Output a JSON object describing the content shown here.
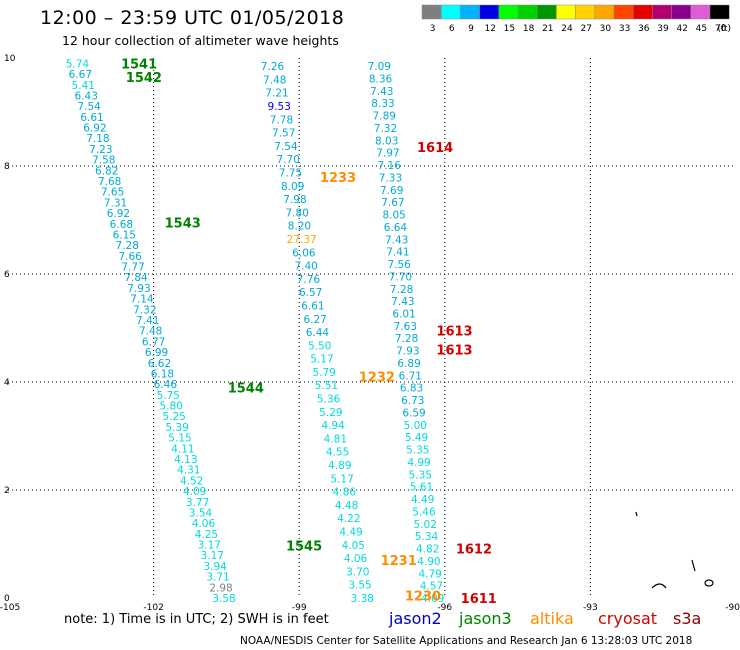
{
  "title": "12:00 – 23:59 UTC 01/05/2018",
  "subtitle": "12 hour collection of altimeter wave heights",
  "note": "note: 1) Time is in UTC; 2) SWH is in feet",
  "credit": "NOAA/NESDIS Center for Satellite Applications and Research    Jan 6 13:28:03 UTC 2018",
  "legend": {
    "unit": "(ft)",
    "bins": [
      {
        "label": "3",
        "color": "#7f7f7f"
      },
      {
        "label": "6",
        "color": "#00ffff"
      },
      {
        "label": "9",
        "color": "#00b2ff"
      },
      {
        "label": "12",
        "color": "#0000e5"
      },
      {
        "label": "15",
        "color": "#00ff00"
      },
      {
        "label": "18",
        "color": "#00d200"
      },
      {
        "label": "21",
        "color": "#009600"
      },
      {
        "label": "24",
        "color": "#ffff00"
      },
      {
        "label": "27",
        "color": "#ffd200"
      },
      {
        "label": "30",
        "color": "#ffa500"
      },
      {
        "label": "33",
        "color": "#ff4500"
      },
      {
        "label": "36",
        "color": "#e60000"
      },
      {
        "label": "39",
        "color": "#b4006e"
      },
      {
        "label": "42",
        "color": "#8b008b"
      },
      {
        "label": "45",
        "color": "#e05cd6"
      },
      {
        "label": "70",
        "color": "#000000"
      }
    ]
  },
  "satellites": [
    {
      "name": "jason2",
      "color": "#0000c8"
    },
    {
      "name": "jason3",
      "color": "#008200"
    },
    {
      "name": "altika",
      "color": "#ff8c00"
    },
    {
      "name": "cryosat",
      "color": "#d20000"
    },
    {
      "name": "s3a",
      "color": "#8b0000"
    }
  ],
  "chart_data": {
    "type": "scatter",
    "title": "12:00 – 23:59 UTC 01/05/2018",
    "subtitle": "12 hour collection of altimeter wave heights",
    "xlim": [
      -105,
      -90
    ],
    "ylim": [
      0,
      10
    ],
    "x_ticks": [
      "-105",
      "-102",
      "-99",
      "-96",
      "-93",
      "-90"
    ],
    "y_ticks": [
      "0",
      "2",
      "4",
      "6",
      "8",
      "10"
    ],
    "grid": true,
    "tracks": [
      {
        "satellite": "jason3",
        "color": "#00ced1",
        "start": [
          -103.57,
          9.9
        ],
        "end": [
          -100.55,
          0.0
        ],
        "values": [
          "5.74",
          "6.67",
          "5.41",
          "6.43",
          "7.54",
          "6.61",
          "6.92",
          "7.18",
          "7.23",
          "7.58",
          "6.82",
          "7.68",
          "7.65",
          "7.31",
          "6.92",
          "6.68",
          "6.15",
          "7.28",
          "7.66",
          "7.77",
          "7.84",
          "7.93",
          "7.14",
          "7.32",
          "7.41",
          "7.48",
          "6.77",
          "6.99",
          "6.62",
          "6.18",
          "6.46",
          "5.75",
          "5.80",
          "5.25",
          "5.39",
          "5.15",
          "4.11",
          "4.13",
          "4.31",
          "4.52",
          "4.09",
          "3.77",
          "3.54",
          "4.06",
          "4.25",
          "3.17",
          "3.17",
          "3.94",
          "3.71",
          "2.98",
          "3.58"
        ]
      },
      {
        "satellite": "altika",
        "color": "#00ced1",
        "start": [
          -99.55,
          9.85
        ],
        "end": [
          -97.7,
          0.0
        ],
        "values": [
          "7.26",
          "7.48",
          "7.21",
          "9.53",
          "7.78",
          "7.57",
          "7.54",
          "7.70",
          "7.75",
          "8.09",
          "7.98",
          "7.80",
          "8.20",
          "27.37",
          "6.06",
          "7.40",
          "7.76",
          "6.57",
          "6.61",
          "6.27",
          "6.44",
          "5.50",
          "5.17",
          "5.79",
          "5.51",
          "5.36",
          "5.29",
          "4.94",
          "4.81",
          "4.55",
          "4.89",
          "5.17",
          "4.86",
          "4.48",
          "4.22",
          "4.49",
          "4.05",
          "4.06",
          "3.70",
          "3.55",
          "3.38"
        ]
      },
      {
        "satellite": "cryosat",
        "color": "#00ced1",
        "start": [
          -97.35,
          9.85
        ],
        "end": [
          -96.25,
          0.0
        ],
        "values": [
          "7.09",
          "8.36",
          "7.43",
          "8.33",
          "7.89",
          "7.32",
          "8.03",
          "7.97",
          "7.16",
          "7.33",
          "7.69",
          "7.67",
          "8.05",
          "6.64",
          "7.43",
          "7.41",
          "7.56",
          "7.70",
          "7.28",
          "7.43",
          "6.01",
          "7.63",
          "7.28",
          "7.93",
          "6.89",
          "6.71",
          "6.83",
          "6.73",
          "6.59",
          "5.00",
          "5.49",
          "5.35",
          "4.99",
          "5.35",
          "5.61",
          "4.49",
          "5.46",
          "5.02",
          "5.34",
          "4.82",
          "4.90",
          "4.79",
          "4.57",
          "4.09"
        ]
      }
    ],
    "annotations": [
      {
        "text": "1541",
        "x": -102.3,
        "y": 9.9,
        "color": "#008200"
      },
      {
        "text": "1542",
        "x": -102.2,
        "y": 9.65,
        "color": "#008200"
      },
      {
        "text": "1543",
        "x": -101.4,
        "y": 6.95,
        "color": "#008200"
      },
      {
        "text": "1544",
        "x": -100.1,
        "y": 3.9,
        "color": "#008200"
      },
      {
        "text": "1545",
        "x": -98.9,
        "y": 0.97,
        "color": "#008200"
      },
      {
        "text": "1233",
        "x": -98.2,
        "y": 7.8,
        "color": "#ff8c00"
      },
      {
        "text": "1232",
        "x": -97.4,
        "y": 4.1,
        "color": "#ff8c00"
      },
      {
        "text": "1231",
        "x": -96.95,
        "y": 0.7,
        "color": "#ff8c00"
      },
      {
        "text": "1230",
        "x": -96.45,
        "y": 0.05,
        "color": "#ff8c00"
      },
      {
        "text": "1614",
        "x": -96.2,
        "y": 8.35,
        "color": "#d20000"
      },
      {
        "text": "1613",
        "x": -95.8,
        "y": 4.95,
        "color": "#d20000"
      },
      {
        "text": "1613",
        "x": -95.8,
        "y": 4.6,
        "color": "#d20000"
      },
      {
        "text": "1612",
        "x": -95.4,
        "y": 0.92,
        "color": "#d20000"
      },
      {
        "text": "1611",
        "x": -95.3,
        "y": 0.0,
        "color": "#d20000"
      }
    ]
  }
}
